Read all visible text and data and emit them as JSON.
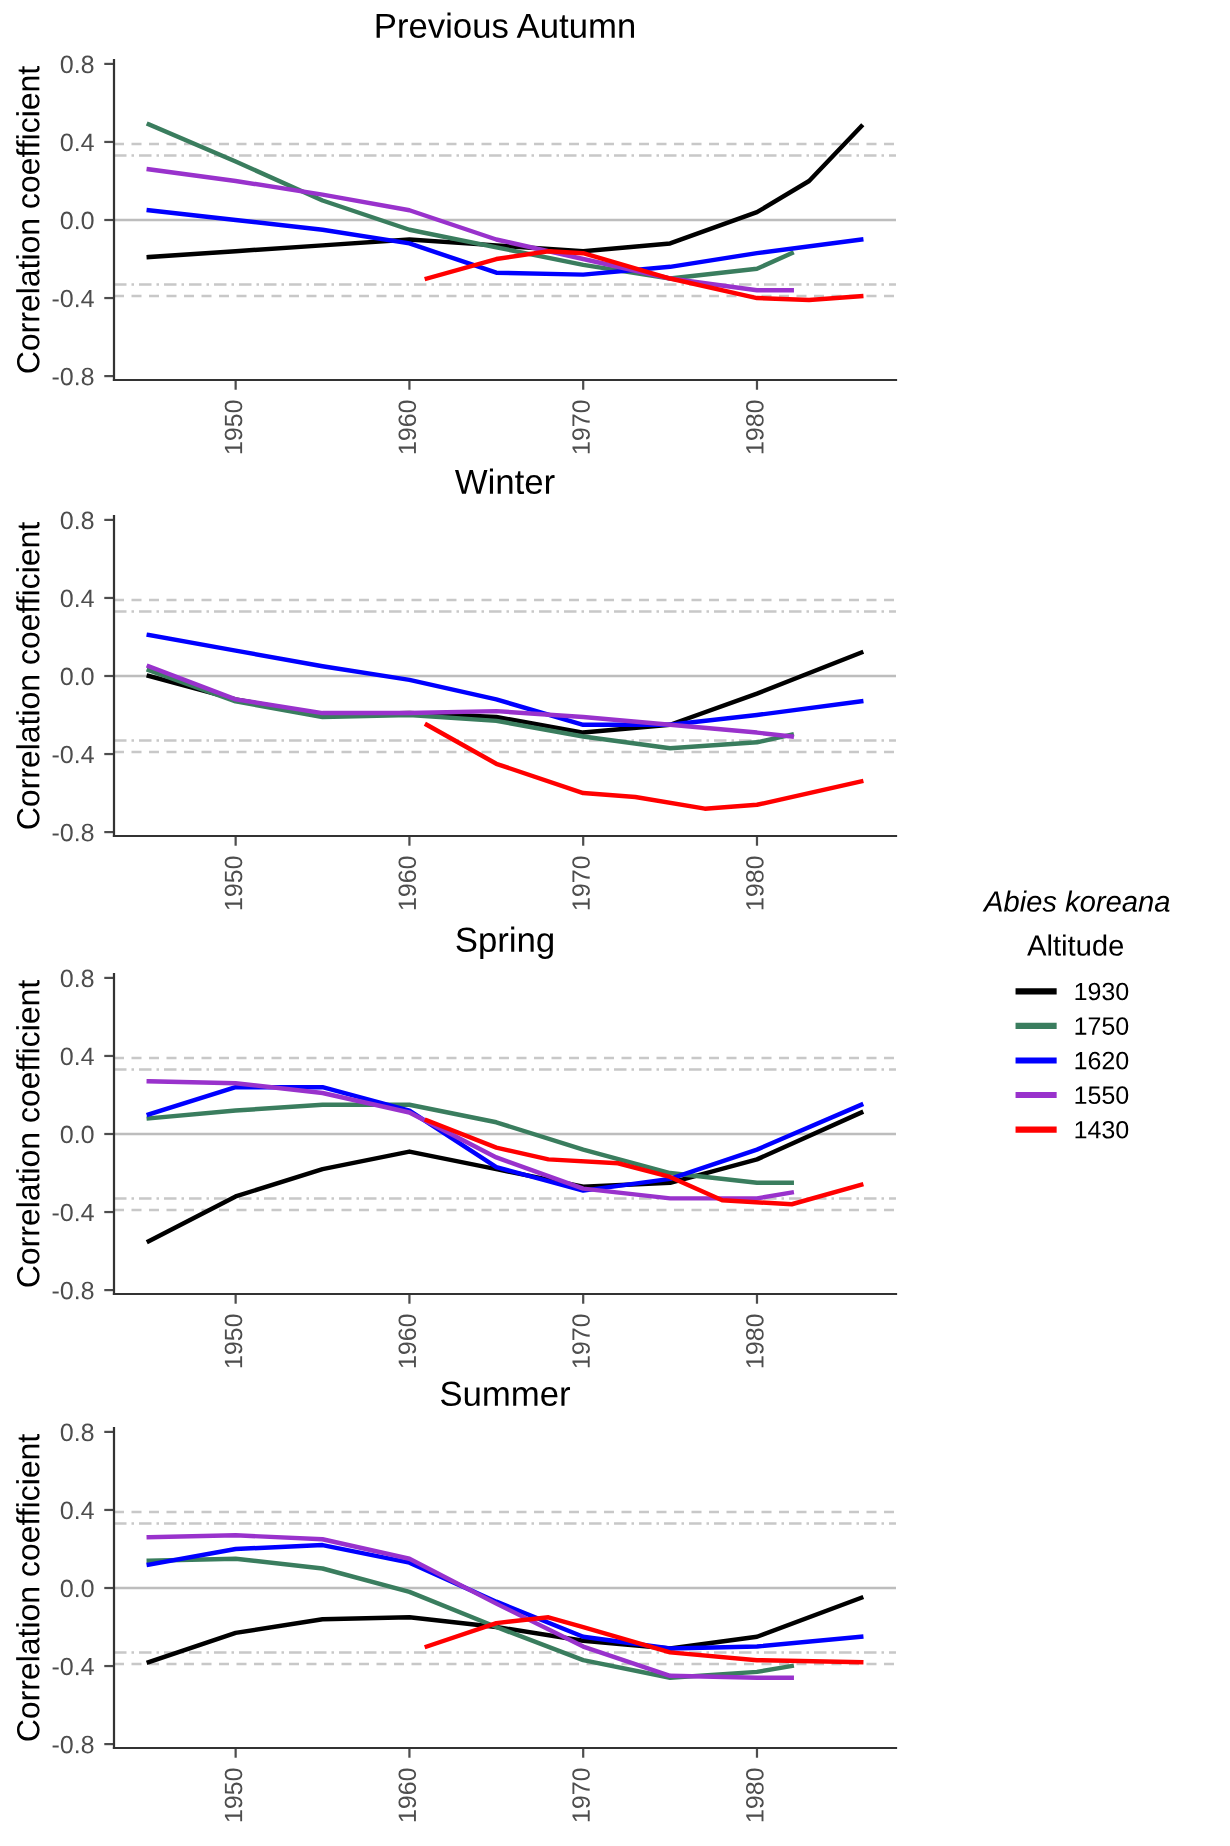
{
  "chart_data": [
    {
      "type": "line",
      "title": "Previous Autumn",
      "ylabel": "Correlation coefficient",
      "xlim": [
        1943,
        1988
      ],
      "xticks": [
        1950,
        1960,
        1970,
        1980
      ],
      "ylim": [
        -0.82,
        0.82
      ],
      "yticks": [
        {
          "value": 0.8,
          "label": "0.8"
        },
        {
          "value": 0.4,
          "label": "0.4"
        },
        {
          "value": 0,
          "label": "0.0"
        },
        {
          "value": -0.4,
          "label": "-0.4"
        },
        {
          "value": -0.8,
          "label": "-0.8"
        }
      ],
      "grid": false,
      "legend": "right",
      "legend_title": "Abies koreana\nAltitude",
      "line_style": "solid",
      "marker": "none",
      "ref_lines": [
        {
          "axis": "y",
          "value": 0,
          "color": "#bdbdbd",
          "line_style": "solid"
        },
        {
          "axis": "y",
          "value": 0.39,
          "color": "#c8c8c8",
          "line_style": "dashed"
        },
        {
          "axis": "y",
          "value": 0.33,
          "color": "#c8c8c8",
          "line_style": "dotted"
        },
        {
          "axis": "y",
          "value": -0.33,
          "color": "#c8c8c8",
          "line_style": "dotted"
        },
        {
          "axis": "y",
          "value": -0.39,
          "color": "#c8c8c8",
          "line_style": "dashed"
        }
      ],
      "series": [
        {
          "name": "1930",
          "color": "#000000",
          "x": [
            1945,
            1950,
            1955,
            1960,
            1965,
            1970,
            1975,
            1980,
            1983,
            1986
          ],
          "values": [
            -0.19,
            -0.16,
            -0.13,
            -0.1,
            -0.13,
            -0.16,
            -0.12,
            0.04,
            0.2,
            0.48
          ]
        },
        {
          "name": "1750",
          "color": "#3a7d5e",
          "x": [
            1945,
            1950,
            1955,
            1960,
            1965,
            1970,
            1975,
            1980,
            1982
          ],
          "values": [
            0.49,
            0.3,
            0.1,
            -0.05,
            -0.14,
            -0.23,
            -0.3,
            -0.25,
            -0.17
          ]
        },
        {
          "name": "1620",
          "color": "#0000ff",
          "x": [
            1945,
            1950,
            1955,
            1960,
            1965,
            1970,
            1975,
            1980,
            1986
          ],
          "values": [
            0.05,
            0.0,
            -0.05,
            -0.12,
            -0.27,
            -0.28,
            -0.24,
            -0.17,
            -0.1
          ]
        },
        {
          "name": "1550",
          "color": "#9932cc",
          "x": [
            1945,
            1950,
            1955,
            1960,
            1965,
            1970,
            1975,
            1980,
            1982
          ],
          "values": [
            0.26,
            0.2,
            0.13,
            0.05,
            -0.1,
            -0.2,
            -0.3,
            -0.36,
            -0.36
          ]
        },
        {
          "name": "1430",
          "color": "#ff0000",
          "x": [
            1961,
            1965,
            1968,
            1970,
            1975,
            1980,
            1983,
            1986
          ],
          "values": [
            -0.3,
            -0.2,
            -0.16,
            -0.17,
            -0.3,
            -0.4,
            -0.41,
            -0.39
          ]
        }
      ]
    },
    {
      "type": "line",
      "title": "Winter",
      "ylabel": "Correlation coefficient",
      "xlim": [
        1943,
        1988
      ],
      "xticks": [
        1950,
        1960,
        1970,
        1980
      ],
      "ylim": [
        -0.82,
        0.82
      ],
      "yticks": [
        {
          "value": 0.8,
          "label": "0.8"
        },
        {
          "value": 0.4,
          "label": "0.4"
        },
        {
          "value": 0,
          "label": "0.0"
        },
        {
          "value": -0.4,
          "label": "-0.4"
        },
        {
          "value": -0.8,
          "label": "-0.8"
        }
      ],
      "grid": false,
      "line_style": "solid",
      "marker": "none",
      "ref_lines": [
        {
          "axis": "y",
          "value": 0,
          "color": "#bdbdbd",
          "line_style": "solid"
        },
        {
          "axis": "y",
          "value": 0.39,
          "color": "#c8c8c8",
          "line_style": "dashed"
        },
        {
          "axis": "y",
          "value": 0.33,
          "color": "#c8c8c8",
          "line_style": "dotted"
        },
        {
          "axis": "y",
          "value": -0.33,
          "color": "#c8c8c8",
          "line_style": "dotted"
        },
        {
          "axis": "y",
          "value": -0.39,
          "color": "#c8c8c8",
          "line_style": "dashed"
        }
      ],
      "series": [
        {
          "name": "1930",
          "color": "#000000",
          "x": [
            1945,
            1950,
            1955,
            1960,
            1965,
            1970,
            1975,
            1980,
            1986
          ],
          "values": [
            0.0,
            -0.12,
            -0.2,
            -0.19,
            -0.21,
            -0.29,
            -0.25,
            -0.09,
            0.12
          ]
        },
        {
          "name": "1750",
          "color": "#3a7d5e",
          "x": [
            1945,
            1950,
            1955,
            1960,
            1965,
            1970,
            1975,
            1980,
            1982
          ],
          "values": [
            0.03,
            -0.13,
            -0.21,
            -0.2,
            -0.23,
            -0.31,
            -0.37,
            -0.34,
            -0.3
          ]
        },
        {
          "name": "1620",
          "color": "#0000ff",
          "x": [
            1945,
            1950,
            1955,
            1960,
            1965,
            1970,
            1975,
            1980,
            1986
          ],
          "values": [
            0.21,
            0.13,
            0.05,
            -0.02,
            -0.12,
            -0.25,
            -0.25,
            -0.2,
            -0.13
          ]
        },
        {
          "name": "1550",
          "color": "#9932cc",
          "x": [
            1945,
            1950,
            1955,
            1960,
            1965,
            1970,
            1975,
            1980,
            1982
          ],
          "values": [
            0.05,
            -0.12,
            -0.19,
            -0.19,
            -0.18,
            -0.21,
            -0.25,
            -0.29,
            -0.31
          ]
        },
        {
          "name": "1430",
          "color": "#ff0000",
          "x": [
            1961,
            1965,
            1970,
            1973,
            1977,
            1980,
            1986
          ],
          "values": [
            -0.25,
            -0.45,
            -0.6,
            -0.62,
            -0.68,
            -0.66,
            -0.54
          ]
        }
      ]
    },
    {
      "type": "line",
      "title": "Spring",
      "ylabel": "Correlation coefficient",
      "xlim": [
        1943,
        1988
      ],
      "xticks": [
        1950,
        1960,
        1970,
        1980
      ],
      "ylim": [
        -0.82,
        0.82
      ],
      "yticks": [
        {
          "value": 0.8,
          "label": "0.8"
        },
        {
          "value": 0.4,
          "label": "0.4"
        },
        {
          "value": 0,
          "label": "0.0"
        },
        {
          "value": -0.4,
          "label": "-0.4"
        },
        {
          "value": -0.8,
          "label": "-0.8"
        }
      ],
      "grid": false,
      "line_style": "solid",
      "marker": "none",
      "ref_lines": [
        {
          "axis": "y",
          "value": 0,
          "color": "#bdbdbd",
          "line_style": "solid"
        },
        {
          "axis": "y",
          "value": 0.39,
          "color": "#c8c8c8",
          "line_style": "dashed"
        },
        {
          "axis": "y",
          "value": 0.33,
          "color": "#c8c8c8",
          "line_style": "dotted"
        },
        {
          "axis": "y",
          "value": -0.33,
          "color": "#c8c8c8",
          "line_style": "dotted"
        },
        {
          "axis": "y",
          "value": -0.39,
          "color": "#c8c8c8",
          "line_style": "dashed"
        }
      ],
      "series": [
        {
          "name": "1930",
          "color": "#000000",
          "x": [
            1945,
            1950,
            1955,
            1960,
            1965,
            1970,
            1975,
            1980,
            1986
          ],
          "values": [
            -0.55,
            -0.32,
            -0.18,
            -0.09,
            -0.18,
            -0.27,
            -0.25,
            -0.13,
            0.11
          ]
        },
        {
          "name": "1750",
          "color": "#3a7d5e",
          "x": [
            1945,
            1950,
            1955,
            1960,
            1965,
            1970,
            1975,
            1980,
            1982
          ],
          "values": [
            0.08,
            0.12,
            0.15,
            0.15,
            0.06,
            -0.08,
            -0.2,
            -0.25,
            -0.25
          ]
        },
        {
          "name": "1620",
          "color": "#0000ff",
          "x": [
            1945,
            1950,
            1955,
            1960,
            1965,
            1970,
            1975,
            1980,
            1986
          ],
          "values": [
            0.1,
            0.24,
            0.24,
            0.12,
            -0.17,
            -0.29,
            -0.23,
            -0.08,
            0.15
          ]
        },
        {
          "name": "1550",
          "color": "#9932cc",
          "x": [
            1945,
            1950,
            1955,
            1960,
            1965,
            1970,
            1975,
            1980,
            1982
          ],
          "values": [
            0.27,
            0.26,
            0.21,
            0.11,
            -0.12,
            -0.28,
            -0.33,
            -0.33,
            -0.3
          ]
        },
        {
          "name": "1430",
          "color": "#ff0000",
          "x": [
            1961,
            1965,
            1968,
            1972,
            1975,
            1978,
            1982,
            1986
          ],
          "values": [
            0.07,
            -0.07,
            -0.13,
            -0.15,
            -0.22,
            -0.34,
            -0.36,
            -0.26
          ]
        }
      ]
    },
    {
      "type": "line",
      "title": "Summer",
      "ylabel": "Correlation coefficient",
      "xlim": [
        1943,
        1988
      ],
      "xticks": [
        1950,
        1960,
        1970,
        1980
      ],
      "ylim": [
        -0.82,
        0.82
      ],
      "yticks": [
        {
          "value": 0.8,
          "label": "0.8"
        },
        {
          "value": 0.4,
          "label": "0.4"
        },
        {
          "value": 0,
          "label": "0.0"
        },
        {
          "value": -0.4,
          "label": "-0.4"
        },
        {
          "value": -0.8,
          "label": "-0.8"
        }
      ],
      "grid": false,
      "line_style": "solid",
      "marker": "none",
      "ref_lines": [
        {
          "axis": "y",
          "value": 0,
          "color": "#bdbdbd",
          "line_style": "solid"
        },
        {
          "axis": "y",
          "value": 0.39,
          "color": "#c8c8c8",
          "line_style": "dashed"
        },
        {
          "axis": "y",
          "value": 0.33,
          "color": "#c8c8c8",
          "line_style": "dotted"
        },
        {
          "axis": "y",
          "value": -0.33,
          "color": "#c8c8c8",
          "line_style": "dotted"
        },
        {
          "axis": "y",
          "value": -0.39,
          "color": "#c8c8c8",
          "line_style": "dashed"
        }
      ],
      "series": [
        {
          "name": "1930",
          "color": "#000000",
          "x": [
            1945,
            1950,
            1955,
            1960,
            1965,
            1970,
            1975,
            1980,
            1986
          ],
          "values": [
            -0.38,
            -0.23,
            -0.16,
            -0.15,
            -0.2,
            -0.27,
            -0.31,
            -0.25,
            -0.05
          ]
        },
        {
          "name": "1750",
          "color": "#3a7d5e",
          "x": [
            1945,
            1950,
            1955,
            1960,
            1965,
            1970,
            1975,
            1980,
            1982
          ],
          "values": [
            0.14,
            0.15,
            0.1,
            -0.02,
            -0.2,
            -0.37,
            -0.46,
            -0.43,
            -0.4
          ]
        },
        {
          "name": "1620",
          "color": "#0000ff",
          "x": [
            1945,
            1950,
            1955,
            1960,
            1965,
            1970,
            1975,
            1980,
            1986
          ],
          "values": [
            0.12,
            0.2,
            0.22,
            0.13,
            -0.07,
            -0.25,
            -0.31,
            -0.3,
            -0.25
          ]
        },
        {
          "name": "1550",
          "color": "#9932cc",
          "x": [
            1945,
            1950,
            1955,
            1960,
            1965,
            1970,
            1975,
            1980,
            1982
          ],
          "values": [
            0.26,
            0.27,
            0.25,
            0.15,
            -0.08,
            -0.3,
            -0.45,
            -0.46,
            -0.46
          ]
        },
        {
          "name": "1430",
          "color": "#ff0000",
          "x": [
            1961,
            1965,
            1968,
            1970,
            1975,
            1980,
            1986
          ],
          "values": [
            -0.3,
            -0.18,
            -0.15,
            -0.2,
            -0.33,
            -0.37,
            -0.38
          ]
        }
      ]
    }
  ]
}
